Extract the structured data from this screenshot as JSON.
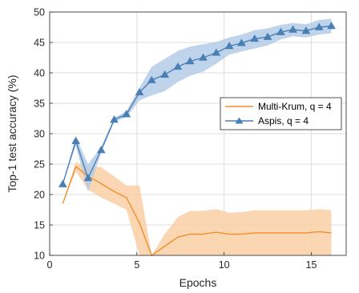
{
  "chart_data": {
    "type": "line",
    "xlabel": "Epochs",
    "ylabel": "Top-1 test accuracy (%)",
    "xlim": [
      0,
      17
    ],
    "ylim": [
      10,
      50
    ],
    "xticks": [
      0,
      5,
      10,
      15
    ],
    "yticks": [
      10,
      15,
      20,
      25,
      30,
      35,
      40,
      45,
      50
    ],
    "grid": true,
    "legend_position": "center-right",
    "series": [
      {
        "name": "Multi-Krum, q = 4",
        "color": "#F28E2B",
        "band_color": "#F9CFA6",
        "marker": "none",
        "x": [
          0.75,
          1.5,
          2.2,
          2.95,
          3.7,
          4.4,
          5.15,
          5.85,
          6.6,
          7.35,
          8.05,
          8.8,
          9.55,
          10.3,
          11.0,
          11.75,
          12.5,
          13.25,
          13.95,
          14.7,
          15.45,
          16.15
        ],
        "y": [
          18.5,
          24.6,
          23.0,
          21.8,
          20.5,
          19.5,
          15.3,
          9.7,
          11.5,
          13.0,
          13.5,
          13.5,
          13.8,
          13.5,
          13.5,
          13.7,
          13.7,
          13.7,
          13.7,
          13.7,
          13.9,
          13.7
        ],
        "lower": [
          18.5,
          23.8,
          20.8,
          19.5,
          18.5,
          17.5,
          9.5,
          9.5,
          9.5,
          10.0,
          10.0,
          10.0,
          10.0,
          10.0,
          10.0,
          10.0,
          10.0,
          10.0,
          10.0,
          10.0,
          10.0,
          10.0
        ],
        "upper": [
          18.5,
          25.3,
          24.6,
          24.5,
          23.0,
          21.5,
          21.5,
          10.0,
          13.5,
          16.3,
          17.3,
          17.3,
          17.6,
          17.0,
          17.1,
          17.4,
          17.4,
          17.4,
          17.4,
          17.4,
          17.6,
          17.4
        ]
      },
      {
        "name": "Aspis, q = 4",
        "color": "#4A7FB5",
        "band_color": "#B4CDE6",
        "marker": "triangle",
        "x": [
          0.75,
          1.5,
          2.2,
          2.95,
          3.7,
          4.4,
          5.15,
          5.85,
          6.6,
          7.35,
          8.05,
          8.8,
          9.55,
          10.3,
          11.0,
          11.75,
          12.5,
          13.25,
          13.95,
          14.7,
          15.45,
          16.15
        ],
        "y": [
          21.7,
          28.8,
          22.7,
          27.3,
          32.3,
          33.2,
          36.8,
          38.8,
          39.7,
          41.0,
          41.9,
          42.5,
          43.3,
          44.4,
          44.9,
          45.6,
          45.9,
          46.7,
          47.1,
          46.9,
          47.5,
          47.7
        ],
        "lower": [
          21.7,
          28.0,
          20.5,
          26.8,
          32.0,
          32.7,
          35.5,
          36.3,
          37.0,
          38.5,
          39.5,
          40.2,
          41.5,
          43.0,
          43.5,
          44.0,
          44.5,
          45.5,
          46.0,
          45.8,
          46.3,
          46.5
        ],
        "upper": [
          21.7,
          29.5,
          25.0,
          27.8,
          32.6,
          33.7,
          37.6,
          41.0,
          42.3,
          43.6,
          44.3,
          44.7,
          45.1,
          45.8,
          46.3,
          47.0,
          47.3,
          47.9,
          48.2,
          48.0,
          48.7,
          48.9
        ]
      }
    ]
  }
}
